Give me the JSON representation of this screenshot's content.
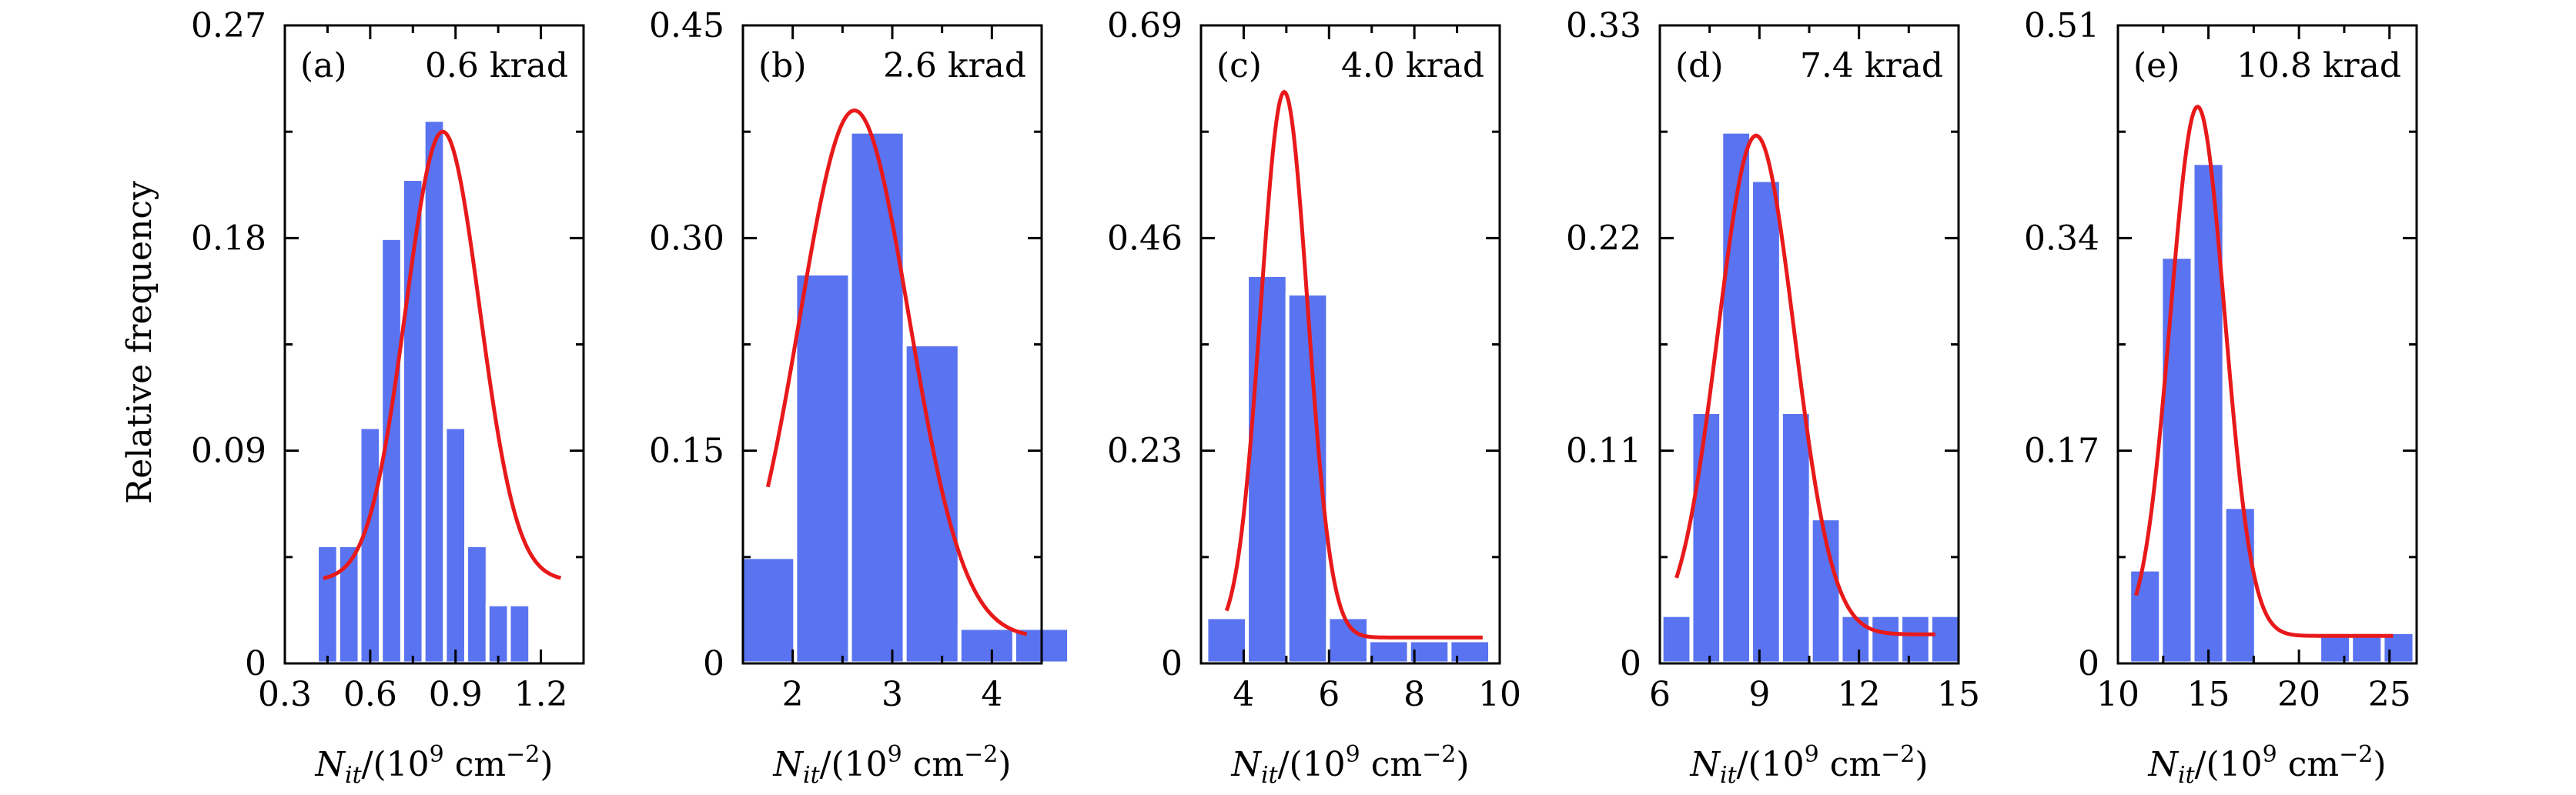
{
  "figure": {
    "ylabel": "Relative frequency",
    "xlabel": {
      "base": "N",
      "sub": "it",
      "mid": "/(10",
      "sup1": "9",
      "unit": " cm",
      "sup2": "−2",
      "close": ")"
    }
  },
  "chart_data": [
    {
      "type": "bar",
      "panel": "(a)",
      "dose": "0.6 krad",
      "ylim": [
        0,
        0.27
      ],
      "yticks": [
        0,
        0.09,
        0.18,
        0.27
      ],
      "ytick_labels": [
        "0",
        "0.09",
        "0.18",
        "0.27"
      ],
      "xlim": [
        0.3,
        1.35
      ],
      "xticks": [
        0.3,
        0.6,
        0.9,
        1.2
      ],
      "xtick_labels": [
        "0.3",
        "0.6",
        "0.9",
        "1.2"
      ],
      "bin_width": 0.075,
      "x": [
        0.45,
        0.525,
        0.6,
        0.675,
        0.75,
        0.825,
        0.9,
        0.975,
        1.05,
        1.125
      ],
      "values": [
        0.05,
        0.05,
        0.1,
        0.18,
        0.205,
        0.23,
        0.1,
        0.05,
        0.025,
        0.025
      ],
      "fit": {
        "center": 0.855,
        "sigma": 0.13,
        "amplitude": 0.19,
        "baseline": 0.035,
        "x_range": [
          0.435,
          1.27
        ]
      }
    },
    {
      "type": "bar",
      "panel": "(b)",
      "dose": "2.6 krad",
      "ylim": [
        0,
        0.45
      ],
      "yticks": [
        0,
        0.15,
        0.3,
        0.45
      ],
      "ytick_labels": [
        "0",
        "0.15",
        "0.30",
        "0.45"
      ],
      "xlim": [
        1.5,
        4.5
      ],
      "xticks": [
        2,
        3,
        4
      ],
      "xtick_labels": [
        "2",
        "3",
        "4"
      ],
      "bin_width": 0.55,
      "x": [
        1.75,
        2.3,
        2.85,
        3.4,
        3.95,
        4.5
      ],
      "values": [
        0.075,
        0.275,
        0.375,
        0.225,
        0.025,
        0.025
      ],
      "fit": {
        "center": 2.62,
        "sigma": 0.55,
        "amplitude": 0.372,
        "baseline": 0.018,
        "x_range": [
          1.75,
          4.35
        ]
      }
    },
    {
      "type": "bar",
      "panel": "(c)",
      "dose": "4.0 krad",
      "ylim": [
        0,
        0.69
      ],
      "yticks": [
        0,
        0.23,
        0.46,
        0.69
      ],
      "ytick_labels": [
        "0",
        "0.23",
        "0.46",
        "0.69"
      ],
      "xlim": [
        3,
        10
      ],
      "xticks": [
        4,
        6,
        8,
        10
      ],
      "xtick_labels": [
        "4",
        "6",
        "8",
        "10"
      ],
      "bin_width": 0.95,
      "x": [
        3.6,
        4.55,
        5.5,
        6.45,
        7.4,
        8.35,
        9.3
      ],
      "values": [
        0.05,
        0.42,
        0.4,
        0.05,
        0.025,
        0.025,
        0.025
      ],
      "fit": {
        "center": 4.95,
        "sigma": 0.55,
        "amplitude": 0.59,
        "baseline": 0.028,
        "x_range": [
          3.6,
          9.6
        ]
      }
    },
    {
      "type": "bar",
      "panel": "(d)",
      "dose": "7.4 krad",
      "ylim": [
        0,
        0.33
      ],
      "yticks": [
        0,
        0.11,
        0.22,
        0.33
      ],
      "ytick_labels": [
        "0",
        "0.11",
        "0.22",
        "0.33"
      ],
      "xlim": [
        6,
        15
      ],
      "xticks": [
        6,
        9,
        12,
        15
      ],
      "xtick_labels": [
        "6",
        "9",
        "12",
        "15"
      ],
      "bin_width": 0.9,
      "x": [
        6.5,
        7.4,
        8.3,
        9.2,
        10.1,
        11.0,
        11.9,
        12.8,
        13.7,
        14.6
      ],
      "values": [
        0.025,
        0.13,
        0.275,
        0.25,
        0.13,
        0.075,
        0.025,
        0.025,
        0.025,
        0.025
      ],
      "fit": {
        "center": 8.9,
        "sigma": 1.15,
        "amplitude": 0.258,
        "baseline": 0.015,
        "x_range": [
          6.5,
          14.3
        ]
      }
    },
    {
      "type": "bar",
      "panel": "(e)",
      "dose": "10.8 krad",
      "ylim": [
        0,
        0.51
      ],
      "yticks": [
        0,
        0.17,
        0.34,
        0.51
      ],
      "ytick_labels": [
        "0",
        "0.17",
        "0.34",
        "0.51"
      ],
      "xlim": [
        10,
        26.5
      ],
      "xticks": [
        10,
        15,
        20,
        25
      ],
      "xtick_labels": [
        "10",
        "15",
        "20",
        "25"
      ],
      "bin_width": 1.75,
      "x": [
        11.5,
        13.25,
        15.0,
        16.75,
        18.5,
        20.25,
        22.0,
        23.75,
        25.5
      ],
      "values": [
        0.075,
        0.325,
        0.4,
        0.125,
        0,
        0,
        0.025,
        0.025,
        0.025
      ],
      "fit": {
        "center": 14.4,
        "sigma": 1.5,
        "amplitude": 0.423,
        "baseline": 0.022,
        "x_range": [
          11.0,
          25.2
        ]
      }
    }
  ]
}
